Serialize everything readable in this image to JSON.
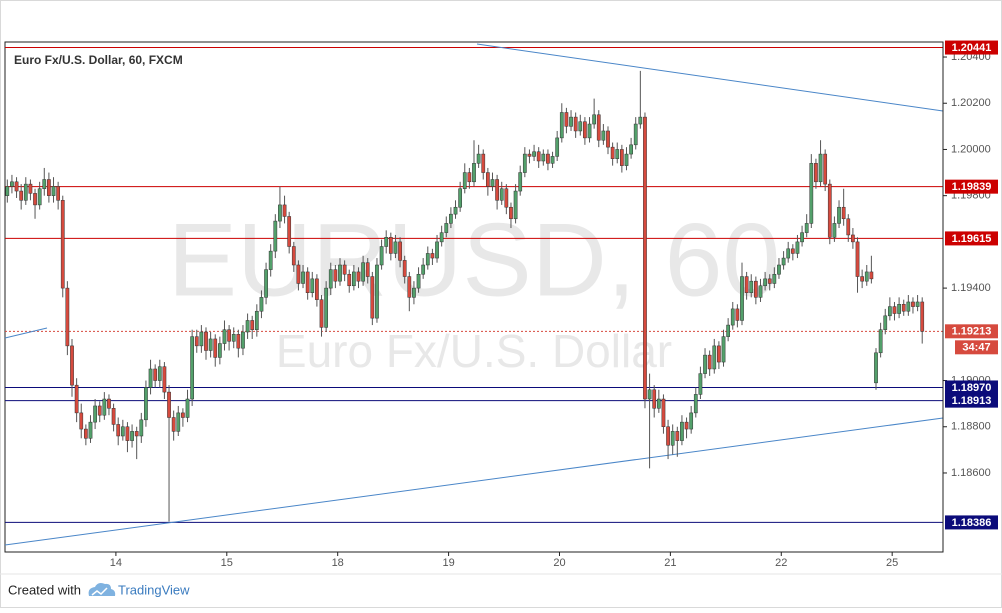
{
  "chart_data": {
    "type": "candlestick",
    "title": "Euro Fx/U.S. Dollar, 60, FXCM",
    "watermark": "EURUSD, 60",
    "watermark_subtitle": "Euro Fx/U.S. Dollar",
    "ylim": [
      1.18258,
      1.20465
    ],
    "yticks": [
      {
        "value": 1.204,
        "label": "1.20400"
      },
      {
        "value": 1.202,
        "label": "1.20200"
      },
      {
        "value": 1.2,
        "label": "1.20000"
      },
      {
        "value": 1.198,
        "label": "1.19800"
      },
      {
        "value": 1.194,
        "label": "1.19400"
      },
      {
        "value": 1.19,
        "label": "1.19000"
      },
      {
        "value": 1.188,
        "label": "1.18800"
      },
      {
        "value": 1.186,
        "label": "1.18600"
      }
    ],
    "xlim": [
      0,
      203
    ],
    "xticks": [
      {
        "value": 24,
        "label": "14"
      },
      {
        "value": 48,
        "label": "15"
      },
      {
        "value": 72,
        "label": "18"
      },
      {
        "value": 96,
        "label": "19"
      },
      {
        "value": 120,
        "label": "20"
      },
      {
        "value": 144,
        "label": "21"
      },
      {
        "value": 168,
        "label": "22"
      },
      {
        "value": 192,
        "label": "25"
      }
    ],
    "up_color": "#53a06b",
    "down_color": "#d64a3e",
    "levels": [
      {
        "value": 1.20441,
        "label": "1.20441",
        "color": "#cc0000"
      },
      {
        "value": 1.19839,
        "label": "1.19839",
        "color": "#cc0000"
      },
      {
        "value": 1.19615,
        "label": "1.19615",
        "color": "#cc0000"
      },
      {
        "value": 1.19213,
        "label": "1.19213",
        "color": "#d64a3e",
        "dashed": true
      },
      {
        "value": 1.1897,
        "label": "1.18970",
        "color": "#0b0b7a"
      },
      {
        "value": 1.18913,
        "label": "1.18913",
        "color": "#0b0b7a"
      },
      {
        "value": 1.18386,
        "label": "1.18386",
        "color": "#0b0b7a"
      }
    ],
    "countdown": "34:47",
    "candles": [
      [
        1.198,
        1.1987,
        1.1977,
        1.1984
      ],
      [
        1.1984,
        1.1989,
        1.1981,
        1.1986
      ],
      [
        1.1986,
        1.1988,
        1.1979,
        1.1982
      ],
      [
        1.1982,
        1.1985,
        1.1974,
        1.1978
      ],
      [
        1.1978,
        1.1988,
        1.1976,
        1.1985
      ],
      [
        1.1985,
        1.1987,
        1.1978,
        1.1981
      ],
      [
        1.1981,
        1.1983,
        1.197,
        1.1976
      ],
      [
        1.1976,
        1.1986,
        1.1974,
        1.1983
      ],
      [
        1.1983,
        1.1992,
        1.198,
        1.1987
      ],
      [
        1.1987,
        1.199,
        1.1977,
        1.198
      ],
      [
        1.198,
        1.1988,
        1.1977,
        1.1984
      ],
      [
        1.1984,
        1.1986,
        1.1974,
        1.1978
      ],
      [
        1.1978,
        1.198,
        1.1936,
        1.194
      ],
      [
        1.194,
        1.1943,
        1.1911,
        1.1915
      ],
      [
        1.1915,
        1.1918,
        1.1893,
        1.1898
      ],
      [
        1.1898,
        1.1901,
        1.1882,
        1.1886
      ],
      [
        1.1886,
        1.189,
        1.1875,
        1.1879
      ],
      [
        1.1879,
        1.1881,
        1.1872,
        1.1875
      ],
      [
        1.1875,
        1.1885,
        1.1873,
        1.1882
      ],
      [
        1.1882,
        1.1892,
        1.1879,
        1.1889
      ],
      [
        1.1889,
        1.1891,
        1.1882,
        1.1885
      ],
      [
        1.1885,
        1.1895,
        1.1883,
        1.1892
      ],
      [
        1.1892,
        1.1894,
        1.1885,
        1.1888
      ],
      [
        1.1888,
        1.189,
        1.1878,
        1.1881
      ],
      [
        1.1881,
        1.1884,
        1.1872,
        1.1876
      ],
      [
        1.1876,
        1.1883,
        1.1874,
        1.188
      ],
      [
        1.188,
        1.1882,
        1.1869,
        1.1874
      ],
      [
        1.1874,
        1.1881,
        1.1871,
        1.1878
      ],
      [
        1.1878,
        1.188,
        1.1866,
        1.1876
      ],
      [
        1.1876,
        1.1886,
        1.1873,
        1.1883
      ],
      [
        1.1883,
        1.19,
        1.188,
        1.1897
      ],
      [
        1.1897,
        1.1909,
        1.1894,
        1.1905
      ],
      [
        1.1905,
        1.1907,
        1.1897,
        1.19
      ],
      [
        1.19,
        1.1909,
        1.1897,
        1.1906
      ],
      [
        1.1906,
        1.1908,
        1.1892,
        1.1895
      ],
      [
        1.1895,
        1.1898,
        1.1839,
        1.1884
      ],
      [
        1.1884,
        1.1887,
        1.1874,
        1.1878
      ],
      [
        1.1878,
        1.1889,
        1.1876,
        1.1886
      ],
      [
        1.1886,
        1.1888,
        1.188,
        1.1884
      ],
      [
        1.1884,
        1.1896,
        1.1882,
        1.1892
      ],
      [
        1.1892,
        1.1922,
        1.1889,
        1.1919
      ],
      [
        1.1919,
        1.1922,
        1.1912,
        1.1915
      ],
      [
        1.1915,
        1.1924,
        1.1912,
        1.1921
      ],
      [
        1.1921,
        1.1923,
        1.1909,
        1.1913
      ],
      [
        1.1913,
        1.1921,
        1.191,
        1.1918
      ],
      [
        1.1918,
        1.192,
        1.1906,
        1.191
      ],
      [
        1.191,
        1.1919,
        1.1907,
        1.1916
      ],
      [
        1.1916,
        1.1926,
        1.1913,
        1.1922
      ],
      [
        1.1922,
        1.1924,
        1.1913,
        1.1917
      ],
      [
        1.1917,
        1.1923,
        1.1914,
        1.192
      ],
      [
        1.192,
        1.1922,
        1.191,
        1.1914
      ],
      [
        1.1914,
        1.1924,
        1.1911,
        1.1921
      ],
      [
        1.1921,
        1.1929,
        1.1918,
        1.1926
      ],
      [
        1.1926,
        1.1928,
        1.1918,
        1.1922
      ],
      [
        1.1922,
        1.1933,
        1.1919,
        1.193
      ],
      [
        1.193,
        1.1939,
        1.1927,
        1.1936
      ],
      [
        1.1936,
        1.1951,
        1.1933,
        1.1948
      ],
      [
        1.1948,
        1.1959,
        1.1945,
        1.1956
      ],
      [
        1.1956,
        1.1972,
        1.1953,
        1.1969
      ],
      [
        1.1969,
        1.1984,
        1.1966,
        1.1976
      ],
      [
        1.1976,
        1.198,
        1.1968,
        1.1971
      ],
      [
        1.1971,
        1.1973,
        1.1955,
        1.1958
      ],
      [
        1.1958,
        1.196,
        1.1947,
        1.195
      ],
      [
        1.195,
        1.1952,
        1.1939,
        1.1942
      ],
      [
        1.1942,
        1.195,
        1.194,
        1.1947
      ],
      [
        1.1947,
        1.1949,
        1.1935,
        1.1938
      ],
      [
        1.1938,
        1.1947,
        1.1936,
        1.1944
      ],
      [
        1.1944,
        1.1946,
        1.1932,
        1.1935
      ],
      [
        1.1935,
        1.1937,
        1.1919,
        1.1923
      ],
      [
        1.1923,
        1.1943,
        1.1921,
        1.194
      ],
      [
        1.194,
        1.1951,
        1.1937,
        1.1948
      ],
      [
        1.1948,
        1.195,
        1.194,
        1.1943
      ],
      [
        1.1943,
        1.1953,
        1.1941,
        1.195
      ],
      [
        1.195,
        1.1952,
        1.1943,
        1.1946
      ],
      [
        1.1946,
        1.1948,
        1.1938,
        1.1941
      ],
      [
        1.1941,
        1.195,
        1.1939,
        1.1947
      ],
      [
        1.1947,
        1.1949,
        1.194,
        1.1943
      ],
      [
        1.1943,
        1.1954,
        1.1941,
        1.1951
      ],
      [
        1.1951,
        1.1953,
        1.1942,
        1.1945
      ],
      [
        1.1945,
        1.1947,
        1.1924,
        1.1927
      ],
      [
        1.1927,
        1.1953,
        1.1925,
        1.195
      ],
      [
        1.195,
        1.1961,
        1.1948,
        1.1958
      ],
      [
        1.1958,
        1.1965,
        1.1955,
        1.1962
      ],
      [
        1.1962,
        1.1964,
        1.1952,
        1.1955
      ],
      [
        1.1955,
        1.1963,
        1.1953,
        1.196
      ],
      [
        1.196,
        1.1962,
        1.1949,
        1.1952
      ],
      [
        1.1952,
        1.1954,
        1.1942,
        1.1945
      ],
      [
        1.1945,
        1.1947,
        1.193,
        1.1936
      ],
      [
        1.1936,
        1.1943,
        1.1933,
        1.194
      ],
      [
        1.194,
        1.1949,
        1.1938,
        1.1946
      ],
      [
        1.1946,
        1.1953,
        1.1944,
        1.195
      ],
      [
        1.195,
        1.1958,
        1.1948,
        1.1955
      ],
      [
        1.1955,
        1.1957,
        1.195,
        1.1953
      ],
      [
        1.1953,
        1.1963,
        1.1951,
        1.196
      ],
      [
        1.196,
        1.1967,
        1.1958,
        1.1964
      ],
      [
        1.1964,
        1.1971,
        1.1962,
        1.1968
      ],
      [
        1.1968,
        1.1975,
        1.1966,
        1.1972
      ],
      [
        1.1972,
        1.1978,
        1.197,
        1.1975
      ],
      [
        1.1975,
        1.1986,
        1.1973,
        1.1983
      ],
      [
        1.1983,
        1.1994,
        1.1981,
        1.199
      ],
      [
        1.199,
        1.1992,
        1.1983,
        1.1986
      ],
      [
        1.1986,
        1.2004,
        1.1984,
        1.1994
      ],
      [
        1.1994,
        1.2002,
        1.1992,
        1.1998
      ],
      [
        1.1998,
        1.2,
        1.1987,
        1.199
      ],
      [
        1.199,
        1.1992,
        1.198,
        1.1984
      ],
      [
        1.1984,
        1.199,
        1.1982,
        1.1987
      ],
      [
        1.1987,
        1.1989,
        1.1974,
        1.1978
      ],
      [
        1.1978,
        1.1986,
        1.1976,
        1.1983
      ],
      [
        1.1983,
        1.1985,
        1.1972,
        1.1975
      ],
      [
        1.1975,
        1.1977,
        1.1966,
        1.197
      ],
      [
        1.197,
        1.1985,
        1.1968,
        1.1982
      ],
      [
        1.1982,
        1.1993,
        1.198,
        1.199
      ],
      [
        1.199,
        1.2001,
        1.1988,
        1.1998
      ],
      [
        1.1998,
        1.2,
        1.1994,
        1.1997
      ],
      [
        1.1997,
        1.2002,
        1.1995,
        1.1999
      ],
      [
        1.1999,
        1.2001,
        1.1992,
        1.1995
      ],
      [
        1.1995,
        1.2,
        1.1993,
        1.1998
      ],
      [
        1.1998,
        1.2,
        1.1991,
        1.1994
      ],
      [
        1.1994,
        1.1999,
        1.1992,
        1.1997
      ],
      [
        1.1997,
        1.2008,
        1.1995,
        1.2005
      ],
      [
        1.2005,
        1.202,
        1.2003,
        1.2016
      ],
      [
        1.2016,
        1.2018,
        1.2007,
        1.201
      ],
      [
        1.201,
        1.2017,
        1.2008,
        1.2014
      ],
      [
        1.2014,
        1.2016,
        1.2005,
        1.2008
      ],
      [
        1.2008,
        1.2015,
        1.2006,
        1.2012
      ],
      [
        1.2012,
        1.2014,
        1.2002,
        1.2005
      ],
      [
        1.2005,
        1.2014,
        1.2003,
        1.2011
      ],
      [
        1.2011,
        1.2022,
        1.2009,
        1.2015
      ],
      [
        1.2015,
        1.2017,
        1.2001,
        1.2004
      ],
      [
        1.2004,
        1.2011,
        1.2002,
        1.2008
      ],
      [
        1.2008,
        1.201,
        1.1998,
        1.2001
      ],
      [
        1.2001,
        1.2003,
        1.1993,
        1.1996
      ],
      [
        1.1996,
        1.2003,
        1.1994,
        1.2
      ],
      [
        1.2,
        1.2002,
        1.199,
        1.1993
      ],
      [
        1.1993,
        1.2001,
        1.1991,
        1.1998
      ],
      [
        1.1998,
        1.2005,
        1.1996,
        1.2002
      ],
      [
        1.2002,
        1.2014,
        1.2,
        1.2011
      ],
      [
        1.2011,
        1.2034,
        1.2009,
        1.2014
      ],
      [
        1.2014,
        1.2016,
        1.1888,
        1.1892
      ],
      [
        1.1892,
        1.1903,
        1.1862,
        1.1896
      ],
      [
        1.1896,
        1.1898,
        1.1884,
        1.1888
      ],
      [
        1.1888,
        1.1896,
        1.1886,
        1.1892
      ],
      [
        1.1892,
        1.1894,
        1.1877,
        1.188
      ],
      [
        1.188,
        1.1883,
        1.1866,
        1.1872
      ],
      [
        1.1872,
        1.1881,
        1.1868,
        1.1878
      ],
      [
        1.1878,
        1.188,
        1.1867,
        1.1874
      ],
      [
        1.1874,
        1.1885,
        1.1872,
        1.1882
      ],
      [
        1.1882,
        1.1884,
        1.1875,
        1.1879
      ],
      [
        1.1879,
        1.1889,
        1.1877,
        1.1886
      ],
      [
        1.1886,
        1.1897,
        1.1884,
        1.1894
      ],
      [
        1.1894,
        1.1906,
        1.1892,
        1.1903
      ],
      [
        1.1903,
        1.1914,
        1.1901,
        1.1911
      ],
      [
        1.1911,
        1.1913,
        1.1902,
        1.1905
      ],
      [
        1.1905,
        1.1918,
        1.1903,
        1.1915
      ],
      [
        1.1915,
        1.1917,
        1.1905,
        1.1908
      ],
      [
        1.1908,
        1.1922,
        1.1906,
        1.1919
      ],
      [
        1.1919,
        1.1927,
        1.1917,
        1.1924
      ],
      [
        1.1924,
        1.1934,
        1.1922,
        1.1931
      ],
      [
        1.1931,
        1.1933,
        1.1923,
        1.1926
      ],
      [
        1.1926,
        1.1951,
        1.1924,
        1.1945
      ],
      [
        1.1945,
        1.1947,
        1.1935,
        1.1938
      ],
      [
        1.1938,
        1.1946,
        1.1936,
        1.1943
      ],
      [
        1.1943,
        1.1945,
        1.1933,
        1.1936
      ],
      [
        1.1936,
        1.1944,
        1.1934,
        1.1941
      ],
      [
        1.1941,
        1.1947,
        1.1939,
        1.1944
      ],
      [
        1.1944,
        1.1946,
        1.1939,
        1.1942
      ],
      [
        1.1942,
        1.1949,
        1.194,
        1.1946
      ],
      [
        1.1946,
        1.1953,
        1.1944,
        1.195
      ],
      [
        1.195,
        1.1956,
        1.1948,
        1.1953
      ],
      [
        1.1953,
        1.196,
        1.1951,
        1.1957
      ],
      [
        1.1957,
        1.1959,
        1.1952,
        1.1955
      ],
      [
        1.1955,
        1.1963,
        1.1953,
        1.196
      ],
      [
        1.196,
        1.1967,
        1.1958,
        1.1964
      ],
      [
        1.1964,
        1.1972,
        1.1962,
        1.1968
      ],
      [
        1.1968,
        1.1998,
        1.1966,
        1.1994
      ],
      [
        1.1994,
        1.1996,
        1.1983,
        1.1986
      ],
      [
        1.1986,
        1.2004,
        1.1984,
        1.1998
      ],
      [
        1.1998,
        1.2,
        1.1982,
        1.1985
      ],
      [
        1.1985,
        1.1987,
        1.1959,
        1.1962
      ],
      [
        1.1962,
        1.1971,
        1.196,
        1.1968
      ],
      [
        1.1968,
        1.1978,
        1.1966,
        1.1975
      ],
      [
        1.1975,
        1.1983,
        1.1967,
        1.197
      ],
      [
        1.197,
        1.1972,
        1.196,
        1.1963
      ],
      [
        1.1963,
        1.1966,
        1.1957,
        1.196
      ],
      [
        1.196,
        1.1962,
        1.1938,
        1.1945
      ],
      [
        1.1945,
        1.1948,
        1.194,
        1.1943
      ],
      [
        1.1943,
        1.195,
        1.1941,
        1.1947
      ],
      [
        1.1947,
        1.1954,
        1.1942,
        1.1944
      ],
      [
        1.1899,
        1.1914,
        1.1896,
        1.1912
      ],
      [
        1.1912,
        1.1925,
        1.191,
        1.1922
      ],
      [
        1.1922,
        1.1931,
        1.192,
        1.1928
      ],
      [
        1.1928,
        1.1936,
        1.1926,
        1.1932
      ],
      [
        1.1932,
        1.1934,
        1.1926,
        1.1929
      ],
      [
        1.1929,
        1.1936,
        1.1927,
        1.1933
      ],
      [
        1.1933,
        1.1935,
        1.1928,
        1.193
      ],
      [
        1.193,
        1.1937,
        1.1928,
        1.1934
      ],
      [
        1.1934,
        1.1936,
        1.1929,
        1.1932
      ],
      [
        1.1932,
        1.1937,
        1.193,
        1.1934
      ],
      [
        1.1934,
        1.1936,
        1.1916,
        1.19213
      ]
    ]
  },
  "footer": {
    "created_with": "Created with",
    "brand": "TradingView"
  }
}
